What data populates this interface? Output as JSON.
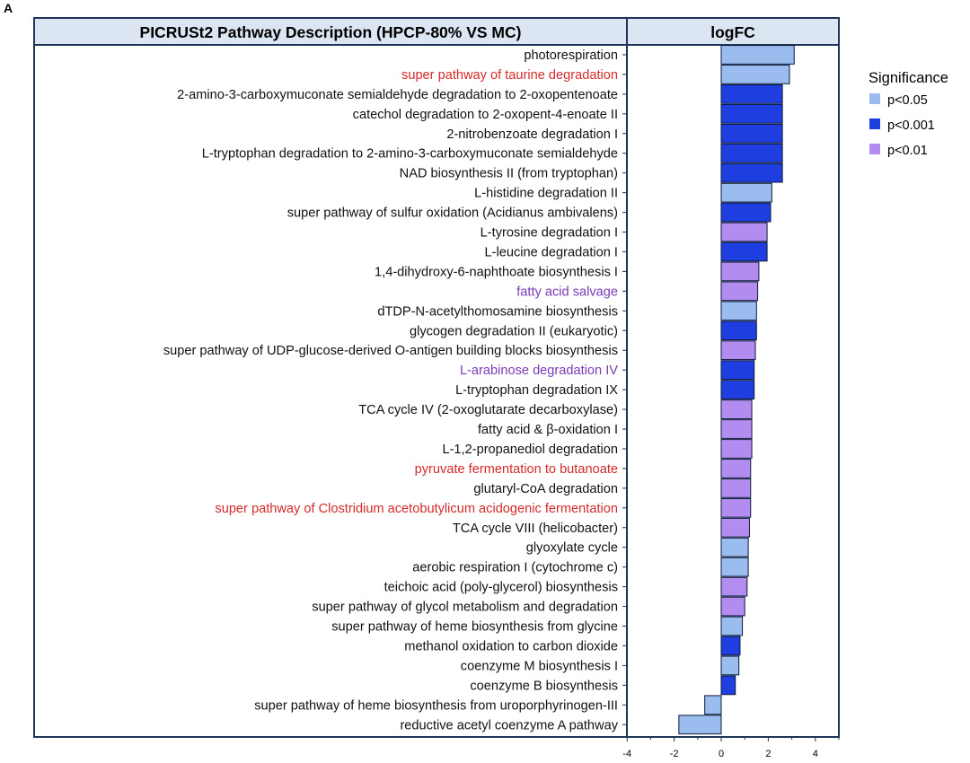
{
  "panel_label": "A",
  "headers": {
    "left": "PICRUSt2 Pathway Description (HPCP-80% VS MC)",
    "right": "logFC"
  },
  "colors": {
    "p<0.05": "#9bbcef",
    "p<0.001": "#1e3ee0",
    "p<0.01": "#b38cf0",
    "header_bg": "#dce6f3",
    "border": "#1f3459",
    "label_red": "#d42a2a",
    "label_purple": "#7a3bb8",
    "label_black": "#111111"
  },
  "legend": {
    "title": "Significance",
    "items": [
      {
        "label": "p<0.05",
        "key": "p<0.05"
      },
      {
        "label": "p<0.001",
        "key": "p<0.001"
      },
      {
        "label": "p<0.01",
        "key": "p<0.01"
      }
    ]
  },
  "chart_data": {
    "type": "bar",
    "orientation": "horizontal",
    "title": "PICRUSt2 Pathway Description (HPCP-80% VS MC)",
    "xlabel": "logFC",
    "xlim": [
      -4,
      5
    ],
    "xticks": [
      -4,
      -2,
      0,
      2,
      4
    ],
    "rows": [
      {
        "label": "photorespiration",
        "value": 3.1,
        "sig": "p<0.05",
        "label_color": "black"
      },
      {
        "label": "super pathway of taurine degradation",
        "value": 2.9,
        "sig": "p<0.05",
        "label_color": "red"
      },
      {
        "label": "2-amino-3-carboxymuconate semialdehyde degradation to 2-oxopentenoate",
        "value": 2.6,
        "sig": "p<0.001",
        "label_color": "black"
      },
      {
        "label": "catechol degradation to 2-oxopent-4-enoate II",
        "value": 2.6,
        "sig": "p<0.001",
        "label_color": "black"
      },
      {
        "label": "2-nitrobenzoate degradation I",
        "value": 2.6,
        "sig": "p<0.001",
        "label_color": "black"
      },
      {
        "label": "L-tryptophan degradation to 2-amino-3-carboxymuconate semialdehyde",
        "value": 2.6,
        "sig": "p<0.001",
        "label_color": "black"
      },
      {
        "label": "NAD biosynthesis II (from tryptophan)",
        "value": 2.6,
        "sig": "p<0.001",
        "label_color": "black"
      },
      {
        "label": "L-histidine degradation II",
        "value": 2.15,
        "sig": "p<0.05",
        "label_color": "black"
      },
      {
        "label": "super pathway of sulfur oxidation (Acidianus ambivalens)",
        "value": 2.1,
        "sig": "p<0.001",
        "label_color": "black"
      },
      {
        "label": "L-tyrosine degradation I",
        "value": 1.95,
        "sig": "p<0.01",
        "label_color": "black"
      },
      {
        "label": "L-leucine degradation I",
        "value": 1.95,
        "sig": "p<0.001",
        "label_color": "black"
      },
      {
        "label": "1,4-dihydroxy-6-naphthoate biosynthesis I",
        "value": 1.6,
        "sig": "p<0.01",
        "label_color": "black"
      },
      {
        "label": "fatty acid salvage",
        "value": 1.55,
        "sig": "p<0.01",
        "label_color": "purple"
      },
      {
        "label": "dTDP-N-acetylthomosamine biosynthesis",
        "value": 1.5,
        "sig": "p<0.05",
        "label_color": "black"
      },
      {
        "label": "glycogen degradation II (eukaryotic)",
        "value": 1.5,
        "sig": "p<0.001",
        "label_color": "black"
      },
      {
        "label": "super pathway of UDP-glucose-derived O-antigen building blocks biosynthesis",
        "value": 1.45,
        "sig": "p<0.01",
        "label_color": "black"
      },
      {
        "label": "L-arabinose degradation IV",
        "value": 1.4,
        "sig": "p<0.001",
        "label_color": "purple"
      },
      {
        "label": "L-tryptophan degradation IX",
        "value": 1.4,
        "sig": "p<0.001",
        "label_color": "black"
      },
      {
        "label": "TCA cycle IV (2-oxoglutarate decarboxylase)",
        "value": 1.3,
        "sig": "p<0.01",
        "label_color": "black"
      },
      {
        "label": "fatty acid & β-oxidation I",
        "value": 1.3,
        "sig": "p<0.01",
        "label_color": "black"
      },
      {
        "label": "L-1,2-propanediol degradation",
        "value": 1.3,
        "sig": "p<0.01",
        "label_color": "black"
      },
      {
        "label": "pyruvate fermentation to butanoate",
        "value": 1.25,
        "sig": "p<0.01",
        "label_color": "red"
      },
      {
        "label": "glutaryl-CoA degradation",
        "value": 1.25,
        "sig": "p<0.01",
        "label_color": "black"
      },
      {
        "label": "super pathway of Clostridium acetobutylicum acidogenic fermentation",
        "value": 1.25,
        "sig": "p<0.01",
        "label_color": "red"
      },
      {
        "label": "TCA cycle VIII (helicobacter)",
        "value": 1.2,
        "sig": "p<0.01",
        "label_color": "black"
      },
      {
        "label": "glyoxylate cycle",
        "value": 1.15,
        "sig": "p<0.05",
        "label_color": "black"
      },
      {
        "label": "aerobic respiration I (cytochrome c)",
        "value": 1.15,
        "sig": "p<0.05",
        "label_color": "black"
      },
      {
        "label": "teichoic acid (poly-glycerol) biosynthesis",
        "value": 1.1,
        "sig": "p<0.01",
        "label_color": "black"
      },
      {
        "label": "super pathway of glycol metabolism and degradation",
        "value": 1.0,
        "sig": "p<0.01",
        "label_color": "black"
      },
      {
        "label": "super pathway of heme biosynthesis from glycine",
        "value": 0.9,
        "sig": "p<0.05",
        "label_color": "black"
      },
      {
        "label": "methanol oxidation to carbon dioxide",
        "value": 0.8,
        "sig": "p<0.001",
        "label_color": "black"
      },
      {
        "label": "coenzyme M biosynthesis I",
        "value": 0.75,
        "sig": "p<0.05",
        "label_color": "black"
      },
      {
        "label": "coenzyme B biosynthesis",
        "value": 0.6,
        "sig": "p<0.001",
        "label_color": "black"
      },
      {
        "label": "super pathway of heme biosynthesis from uroporphyrinogen-III",
        "value": -0.7,
        "sig": "p<0.05",
        "label_color": "black"
      },
      {
        "label": "reductive acetyl coenzyme A pathway",
        "value": -1.8,
        "sig": "p<0.05",
        "label_color": "black"
      }
    ]
  }
}
